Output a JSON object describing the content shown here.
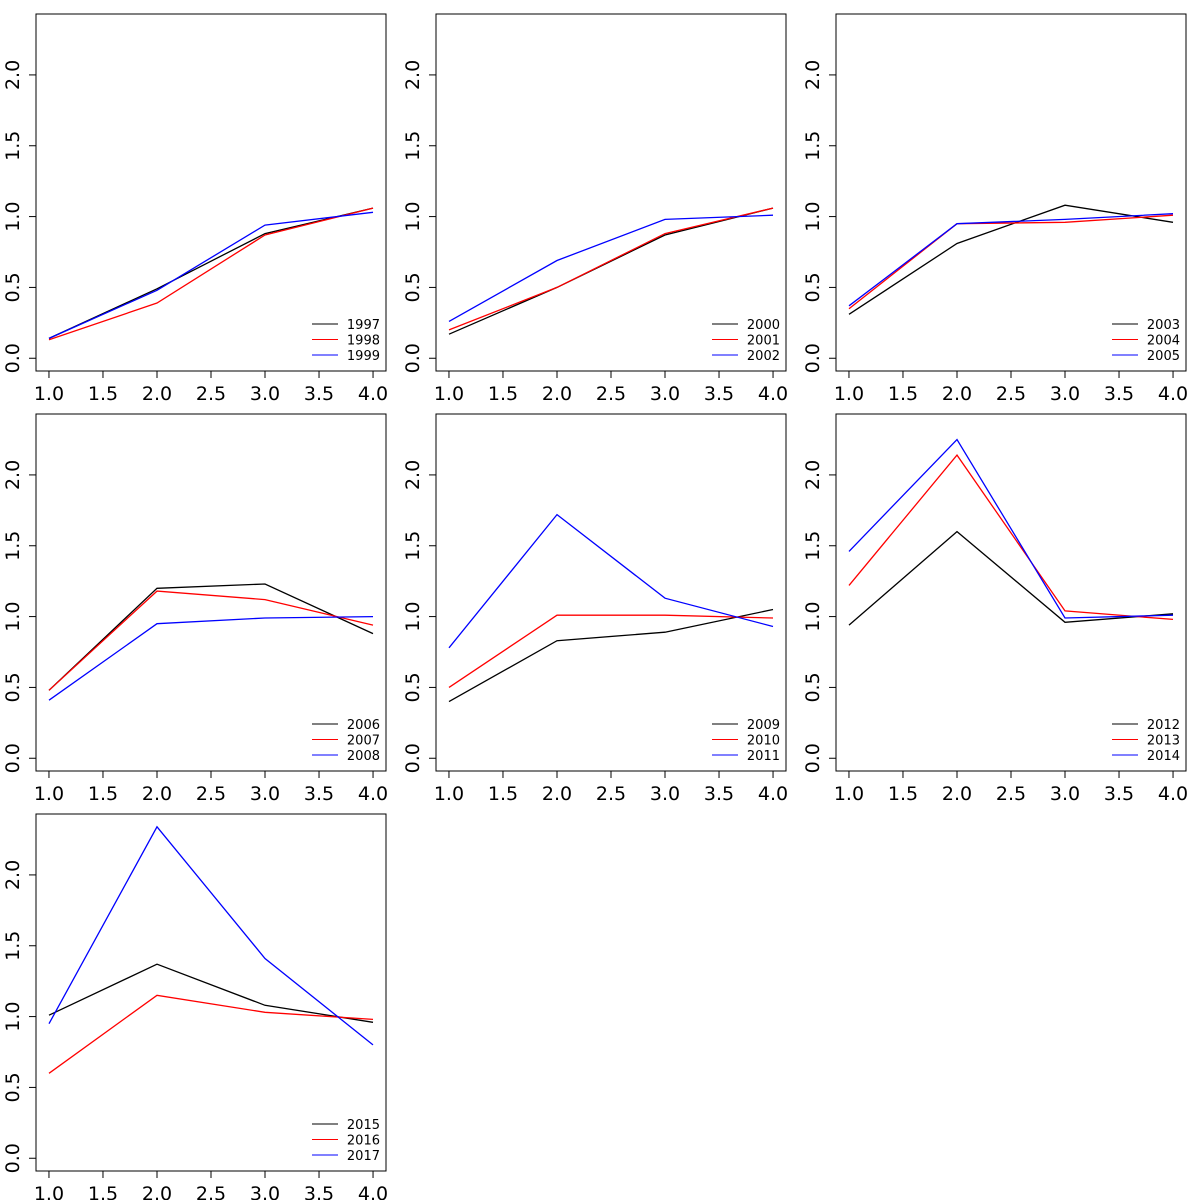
{
  "chart_data": [
    {
      "type": "line",
      "x": [
        1,
        2,
        3,
        4
      ],
      "xlim": [
        0.88,
        4.12
      ],
      "ylim": [
        -0.09,
        2.43
      ],
      "xticks": [
        "1.0",
        "1.5",
        "2.0",
        "2.5",
        "3.0",
        "3.5",
        "4.0"
      ],
      "yticks": [
        "0.0",
        "0.5",
        "1.0",
        "1.5",
        "2.0"
      ],
      "legend_position": "bottom-right",
      "series": [
        {
          "name": "1997",
          "color": "#000000",
          "values": [
            0.14,
            0.49,
            0.88,
            1.06
          ]
        },
        {
          "name": "1998",
          "color": "#ff0000",
          "values": [
            0.13,
            0.39,
            0.87,
            1.06
          ]
        },
        {
          "name": "1999",
          "color": "#0000ff",
          "values": [
            0.14,
            0.48,
            0.94,
            1.03
          ]
        }
      ]
    },
    {
      "type": "line",
      "x": [
        1,
        2,
        3,
        4
      ],
      "xlim": [
        0.88,
        4.12
      ],
      "ylim": [
        -0.09,
        2.43
      ],
      "xticks": [
        "1.0",
        "1.5",
        "2.0",
        "2.5",
        "3.0",
        "3.5",
        "4.0"
      ],
      "yticks": [
        "0.0",
        "0.5",
        "1.0",
        "1.5",
        "2.0"
      ],
      "legend_position": "bottom-right",
      "series": [
        {
          "name": "2000",
          "color": "#000000",
          "values": [
            0.17,
            0.5,
            0.87,
            1.06
          ]
        },
        {
          "name": "2001",
          "color": "#ff0000",
          "values": [
            0.2,
            0.5,
            0.88,
            1.06
          ]
        },
        {
          "name": "2002",
          "color": "#0000ff",
          "values": [
            0.26,
            0.69,
            0.98,
            1.01
          ]
        }
      ]
    },
    {
      "type": "line",
      "x": [
        1,
        2,
        3,
        4
      ],
      "xlim": [
        0.88,
        4.12
      ],
      "ylim": [
        -0.09,
        2.43
      ],
      "xticks": [
        "1.0",
        "1.5",
        "2.0",
        "2.5",
        "3.0",
        "3.5",
        "4.0"
      ],
      "yticks": [
        "0.0",
        "0.5",
        "1.0",
        "1.5",
        "2.0"
      ],
      "legend_position": "bottom-right",
      "series": [
        {
          "name": "2003",
          "color": "#000000",
          "values": [
            0.31,
            0.81,
            1.08,
            0.96
          ]
        },
        {
          "name": "2004",
          "color": "#ff0000",
          "values": [
            0.35,
            0.95,
            0.96,
            1.01
          ]
        },
        {
          "name": "2005",
          "color": "#0000ff",
          "values": [
            0.37,
            0.95,
            0.98,
            1.02
          ]
        }
      ]
    },
    {
      "type": "line",
      "x": [
        1,
        2,
        3,
        4
      ],
      "xlim": [
        0.88,
        4.12
      ],
      "ylim": [
        -0.09,
        2.43
      ],
      "xticks": [
        "1.0",
        "1.5",
        "2.0",
        "2.5",
        "3.0",
        "3.5",
        "4.0"
      ],
      "yticks": [
        "0.0",
        "0.5",
        "1.0",
        "1.5",
        "2.0"
      ],
      "legend_position": "bottom-right",
      "series": [
        {
          "name": "2006",
          "color": "#000000",
          "values": [
            0.48,
            1.2,
            1.23,
            0.88
          ]
        },
        {
          "name": "2007",
          "color": "#ff0000",
          "values": [
            0.48,
            1.18,
            1.12,
            0.94
          ]
        },
        {
          "name": "2008",
          "color": "#0000ff",
          "values": [
            0.41,
            0.95,
            0.99,
            1.0
          ]
        }
      ]
    },
    {
      "type": "line",
      "x": [
        1,
        2,
        3,
        4
      ],
      "xlim": [
        0.88,
        4.12
      ],
      "ylim": [
        -0.09,
        2.43
      ],
      "xticks": [
        "1.0",
        "1.5",
        "2.0",
        "2.5",
        "3.0",
        "3.5",
        "4.0"
      ],
      "yticks": [
        "0.0",
        "0.5",
        "1.0",
        "1.5",
        "2.0"
      ],
      "legend_position": "bottom-right",
      "series": [
        {
          "name": "2009",
          "color": "#000000",
          "values": [
            0.4,
            0.83,
            0.89,
            1.05
          ]
        },
        {
          "name": "2010",
          "color": "#ff0000",
          "values": [
            0.5,
            1.01,
            1.01,
            0.99
          ]
        },
        {
          "name": "2011",
          "color": "#0000ff",
          "values": [
            0.78,
            1.72,
            1.13,
            0.93
          ]
        }
      ]
    },
    {
      "type": "line",
      "x": [
        1,
        2,
        3,
        4
      ],
      "xlim": [
        0.88,
        4.12
      ],
      "ylim": [
        -0.09,
        2.43
      ],
      "xticks": [
        "1.0",
        "1.5",
        "2.0",
        "2.5",
        "3.0",
        "3.5",
        "4.0"
      ],
      "yticks": [
        "0.0",
        "0.5",
        "1.0",
        "1.5",
        "2.0"
      ],
      "legend_position": "bottom-right",
      "series": [
        {
          "name": "2012",
          "color": "#000000",
          "values": [
            0.94,
            1.6,
            0.96,
            1.02
          ]
        },
        {
          "name": "2013",
          "color": "#ff0000",
          "values": [
            1.22,
            2.14,
            1.04,
            0.98
          ]
        },
        {
          "name": "2014",
          "color": "#0000ff",
          "values": [
            1.46,
            2.25,
            0.99,
            1.01
          ]
        }
      ]
    },
    {
      "type": "line",
      "x": [
        1,
        2,
        3,
        4
      ],
      "xlim": [
        0.88,
        4.12
      ],
      "ylim": [
        -0.09,
        2.43
      ],
      "xticks": [
        "1.0",
        "1.5",
        "2.0",
        "2.5",
        "3.0",
        "3.5",
        "4.0"
      ],
      "yticks": [
        "0.0",
        "0.5",
        "1.0",
        "1.5",
        "2.0"
      ],
      "legend_position": "bottom-right",
      "series": [
        {
          "name": "2015",
          "color": "#000000",
          "values": [
            1.01,
            1.37,
            1.08,
            0.96
          ]
        },
        {
          "name": "2016",
          "color": "#ff0000",
          "values": [
            0.6,
            1.15,
            1.03,
            0.98
          ]
        },
        {
          "name": "2017",
          "color": "#0000ff",
          "values": [
            0.95,
            2.34,
            1.41,
            0.8
          ]
        }
      ]
    }
  ]
}
